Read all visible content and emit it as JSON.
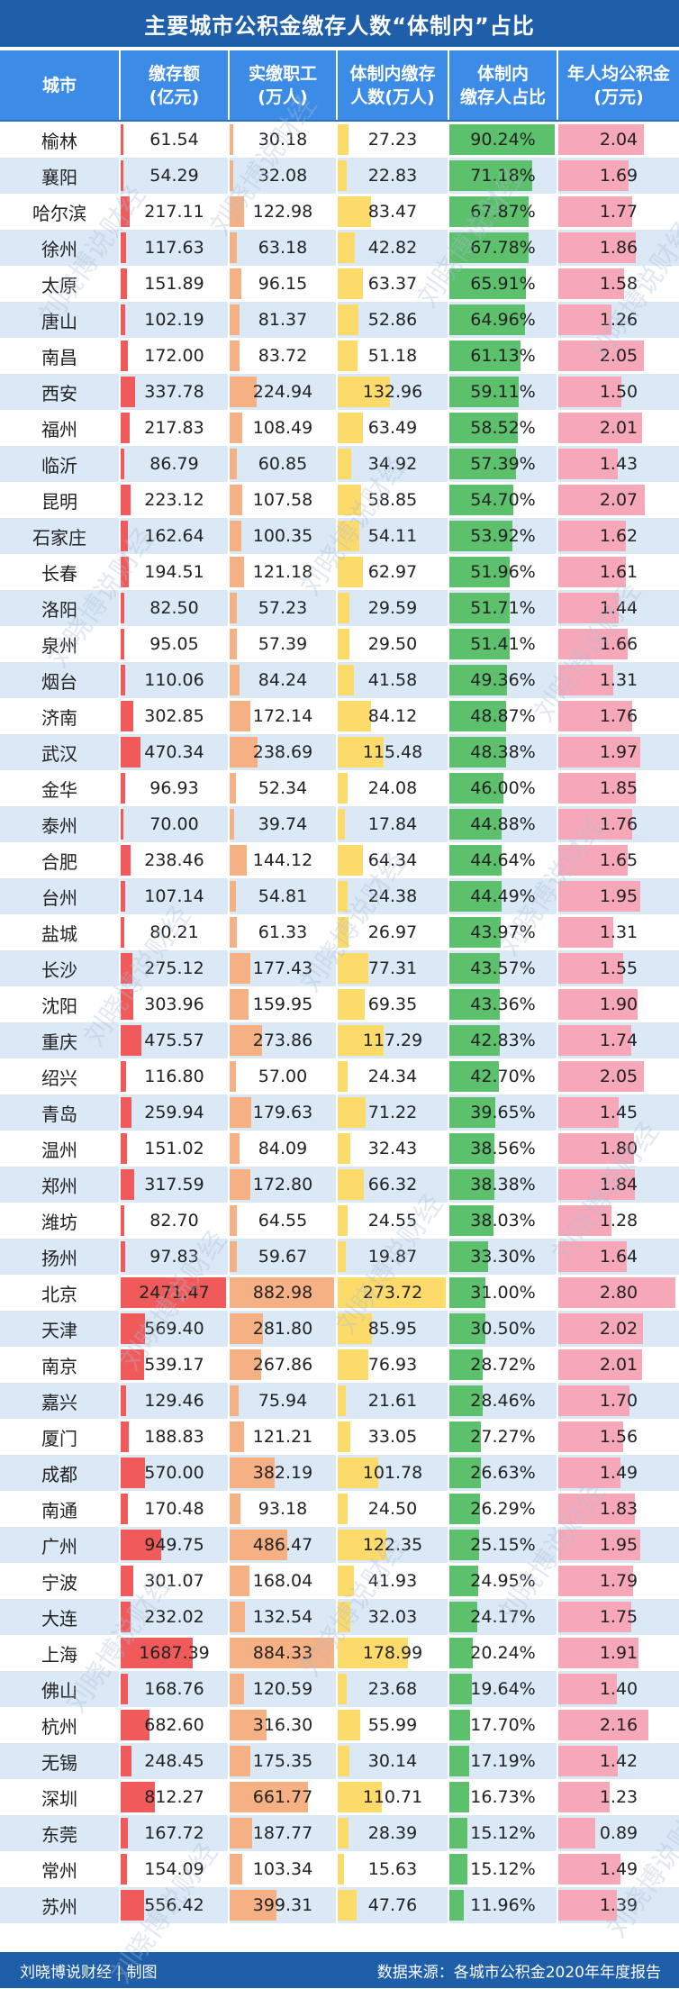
{
  "title": "主要城市公积金缴存人数“体制内”占比",
  "headers": [
    "城市",
    "缴存额\n(亿元)",
    "实缴职工\n(万人)",
    "体制内缴存\n人数(万人)",
    "体制内\n缴存人占比",
    "年人均公积金\n(万元)"
  ],
  "colors": {
    "title_bg": "#1f5faa",
    "header_bg": "#3c8be6",
    "deposit_bar": "#f05a5a",
    "workers_bar": "#f5b183",
    "internal_bar": "#fddb6a",
    "ratio_bar": "#5cc06c",
    "avg_bar": "#f7a8b8"
  },
  "scale": {
    "deposit_max": 2471.47,
    "workers_max": 884.33,
    "internal_max": 273.72,
    "ratio_max": 90.24,
    "avg_max": 2.8
  },
  "rows": [
    {
      "city": "榆林",
      "deposit": "61.54",
      "workers": "30.18",
      "internal": "27.23",
      "ratio": "90.24%",
      "avg": "2.04"
    },
    {
      "city": "襄阳",
      "deposit": "54.29",
      "workers": "32.08",
      "internal": "22.83",
      "ratio": "71.18%",
      "avg": "1.69"
    },
    {
      "city": "哈尔滨",
      "deposit": "217.11",
      "workers": "122.98",
      "internal": "83.47",
      "ratio": "67.87%",
      "avg": "1.77"
    },
    {
      "city": "徐州",
      "deposit": "117.63",
      "workers": "63.18",
      "internal": "42.82",
      "ratio": "67.78%",
      "avg": "1.86"
    },
    {
      "city": "太原",
      "deposit": "151.89",
      "workers": "96.15",
      "internal": "63.37",
      "ratio": "65.91%",
      "avg": "1.58"
    },
    {
      "city": "唐山",
      "deposit": "102.19",
      "workers": "81.37",
      "internal": "52.86",
      "ratio": "64.96%",
      "avg": "1.26"
    },
    {
      "city": "南昌",
      "deposit": "172.00",
      "workers": "83.72",
      "internal": "51.18",
      "ratio": "61.13%",
      "avg": "2.05"
    },
    {
      "city": "西安",
      "deposit": "337.78",
      "workers": "224.94",
      "internal": "132.96",
      "ratio": "59.11%",
      "avg": "1.50"
    },
    {
      "city": "福州",
      "deposit": "217.83",
      "workers": "108.49",
      "internal": "63.49",
      "ratio": "58.52%",
      "avg": "2.01"
    },
    {
      "city": "临沂",
      "deposit": "86.79",
      "workers": "60.85",
      "internal": "34.92",
      "ratio": "57.39%",
      "avg": "1.43"
    },
    {
      "city": "昆明",
      "deposit": "223.12",
      "workers": "107.58",
      "internal": "58.85",
      "ratio": "54.70%",
      "avg": "2.07"
    },
    {
      "city": "石家庄",
      "deposit": "162.64",
      "workers": "100.35",
      "internal": "54.11",
      "ratio": "53.92%",
      "avg": "1.62"
    },
    {
      "city": "长春",
      "deposit": "194.51",
      "workers": "121.18",
      "internal": "62.97",
      "ratio": "51.96%",
      "avg": "1.61"
    },
    {
      "city": "洛阳",
      "deposit": "82.50",
      "workers": "57.23",
      "internal": "29.59",
      "ratio": "51.71%",
      "avg": "1.44"
    },
    {
      "city": "泉州",
      "deposit": "95.05",
      "workers": "57.39",
      "internal": "29.50",
      "ratio": "51.41%",
      "avg": "1.66"
    },
    {
      "city": "烟台",
      "deposit": "110.06",
      "workers": "84.24",
      "internal": "41.58",
      "ratio": "49.36%",
      "avg": "1.31"
    },
    {
      "city": "济南",
      "deposit": "302.85",
      "workers": "172.14",
      "internal": "84.12",
      "ratio": "48.87%",
      "avg": "1.76"
    },
    {
      "city": "武汉",
      "deposit": "470.34",
      "workers": "238.69",
      "internal": "115.48",
      "ratio": "48.38%",
      "avg": "1.97"
    },
    {
      "city": "金华",
      "deposit": "96.93",
      "workers": "52.34",
      "internal": "24.08",
      "ratio": "46.00%",
      "avg": "1.85"
    },
    {
      "city": "泰州",
      "deposit": "70.00",
      "workers": "39.74",
      "internal": "17.84",
      "ratio": "44.88%",
      "avg": "1.76"
    },
    {
      "city": "合肥",
      "deposit": "238.46",
      "workers": "144.12",
      "internal": "64.34",
      "ratio": "44.64%",
      "avg": "1.65"
    },
    {
      "city": "台州",
      "deposit": "107.14",
      "workers": "54.81",
      "internal": "24.38",
      "ratio": "44.49%",
      "avg": "1.95"
    },
    {
      "city": "盐城",
      "deposit": "80.21",
      "workers": "61.33",
      "internal": "26.97",
      "ratio": "43.97%",
      "avg": "1.31"
    },
    {
      "city": "长沙",
      "deposit": "275.12",
      "workers": "177.43",
      "internal": "77.31",
      "ratio": "43.57%",
      "avg": "1.55"
    },
    {
      "city": "沈阳",
      "deposit": "303.96",
      "workers": "159.95",
      "internal": "69.35",
      "ratio": "43.36%",
      "avg": "1.90"
    },
    {
      "city": "重庆",
      "deposit": "475.57",
      "workers": "273.86",
      "internal": "117.29",
      "ratio": "42.83%",
      "avg": "1.74"
    },
    {
      "city": "绍兴",
      "deposit": "116.80",
      "workers": "57.00",
      "internal": "24.34",
      "ratio": "42.70%",
      "avg": "2.05"
    },
    {
      "city": "青岛",
      "deposit": "259.94",
      "workers": "179.63",
      "internal": "71.22",
      "ratio": "39.65%",
      "avg": "1.45"
    },
    {
      "city": "温州",
      "deposit": "151.02",
      "workers": "84.09",
      "internal": "32.43",
      "ratio": "38.56%",
      "avg": "1.80"
    },
    {
      "city": "郑州",
      "deposit": "317.59",
      "workers": "172.80",
      "internal": "66.32",
      "ratio": "38.38%",
      "avg": "1.84"
    },
    {
      "city": "潍坊",
      "deposit": "82.70",
      "workers": "64.55",
      "internal": "24.55",
      "ratio": "38.03%",
      "avg": "1.28"
    },
    {
      "city": "扬州",
      "deposit": "97.83",
      "workers": "59.67",
      "internal": "19.87",
      "ratio": "33.30%",
      "avg": "1.64"
    },
    {
      "city": "北京",
      "deposit": "2471.47",
      "workers": "882.98",
      "internal": "273.72",
      "ratio": "31.00%",
      "avg": "2.80"
    },
    {
      "city": "天津",
      "deposit": "569.40",
      "workers": "281.80",
      "internal": "85.95",
      "ratio": "30.50%",
      "avg": "2.02"
    },
    {
      "city": "南京",
      "deposit": "539.17",
      "workers": "267.86",
      "internal": "76.93",
      "ratio": "28.72%",
      "avg": "2.01"
    },
    {
      "city": "嘉兴",
      "deposit": "129.46",
      "workers": "75.94",
      "internal": "21.61",
      "ratio": "28.46%",
      "avg": "1.70"
    },
    {
      "city": "厦门",
      "deposit": "188.83",
      "workers": "121.21",
      "internal": "33.05",
      "ratio": "27.27%",
      "avg": "1.56"
    },
    {
      "city": "成都",
      "deposit": "570.00",
      "workers": "382.19",
      "internal": "101.78",
      "ratio": "26.63%",
      "avg": "1.49"
    },
    {
      "city": "南通",
      "deposit": "170.48",
      "workers": "93.18",
      "internal": "24.50",
      "ratio": "26.29%",
      "avg": "1.83"
    },
    {
      "city": "广州",
      "deposit": "949.75",
      "workers": "486.47",
      "internal": "122.35",
      "ratio": "25.15%",
      "avg": "1.95"
    },
    {
      "city": "宁波",
      "deposit": "301.07",
      "workers": "168.04",
      "internal": "41.93",
      "ratio": "24.95%",
      "avg": "1.79"
    },
    {
      "city": "大连",
      "deposit": "232.02",
      "workers": "132.54",
      "internal": "32.03",
      "ratio": "24.17%",
      "avg": "1.75"
    },
    {
      "city": "上海",
      "deposit": "1687.39",
      "workers": "884.33",
      "internal": "178.99",
      "ratio": "20.24%",
      "avg": "1.91"
    },
    {
      "city": "佛山",
      "deposit": "168.76",
      "workers": "120.59",
      "internal": "23.68",
      "ratio": "19.64%",
      "avg": "1.40"
    },
    {
      "city": "杭州",
      "deposit": "682.60",
      "workers": "316.30",
      "internal": "55.99",
      "ratio": "17.70%",
      "avg": "2.16"
    },
    {
      "city": "无锡",
      "deposit": "248.45",
      "workers": "175.35",
      "internal": "30.14",
      "ratio": "17.19%",
      "avg": "1.42"
    },
    {
      "city": "深圳",
      "deposit": "812.27",
      "workers": "661.77",
      "internal": "110.71",
      "ratio": "16.73%",
      "avg": "1.23"
    },
    {
      "city": "东莞",
      "deposit": "167.72",
      "workers": "187.77",
      "internal": "28.39",
      "ratio": "15.12%",
      "avg": "0.89"
    },
    {
      "city": "常州",
      "deposit": "154.09",
      "workers": "103.34",
      "internal": "15.63",
      "ratio": "15.12%",
      "avg": "1.49"
    },
    {
      "city": "苏州",
      "deposit": "556.42",
      "workers": "399.31",
      "internal": "47.76",
      "ratio": "11.96%",
      "avg": "1.39"
    }
  ],
  "footer": {
    "left": "刘晓博说财经 | 制图",
    "right": "数据来源：各城市公积金2020年年度报告"
  },
  "watermark": "刘晓博说财经"
}
